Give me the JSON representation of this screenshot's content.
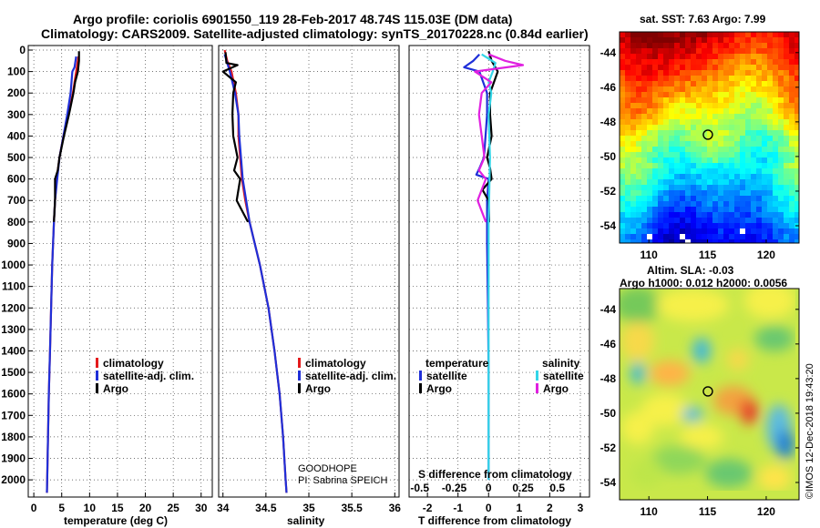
{
  "header": {
    "line1": "Argo profile: coriolis 6901550_119 28-Feb-2017 48.74S 115.03E (DM data)",
    "line2": "Climatology: CARS2009. Satellite-adjusted climatology: synTS_20170228.nc (0.84d earlier)"
  },
  "colors": {
    "climatology": "#e41a1c",
    "satellite": "#1f2fd8",
    "argo": "#000000",
    "satellite_s": "#33d6e8",
    "argo_s": "#e020e0"
  },
  "legend": {
    "climatology": "climatology",
    "satellite_adj": "satellite-adj. clim.",
    "argo": "Argo",
    "temperature_head": "temperature",
    "salinity_head": "salinity",
    "satellite": "satellite"
  },
  "notes": {
    "project": "GOODHOPE",
    "pi": "PI: Sabrina SPEICH"
  },
  "credit": "©IMOS 12-Dec-2018 19:43:20",
  "chart_data": [
    {
      "type": "line",
      "name": "temperature-profile",
      "xlabel": "temperature (deg C)",
      "ylabel": "",
      "xlim": [
        -1,
        32
      ],
      "xticks": [
        0,
        5,
        10,
        15,
        20,
        25,
        30
      ],
      "ylim": [
        2080,
        0
      ],
      "yticks": [
        0,
        100,
        200,
        300,
        400,
        500,
        600,
        700,
        800,
        900,
        1000,
        1100,
        1200,
        1300,
        1400,
        1500,
        1600,
        1700,
        1800,
        1900,
        2000
      ],
      "grid": true,
      "series": [
        {
          "name": "climatology",
          "depth": [
            30,
            100,
            200,
            300,
            400,
            500,
            600,
            700,
            800,
            1000,
            1200,
            1400,
            1600,
            1800,
            2000,
            2060
          ],
          "values": [
            8.0,
            7.6,
            7.0,
            6.2,
            5.3,
            4.6,
            4.1,
            3.8,
            3.6,
            3.3,
            3.1,
            2.9,
            2.7,
            2.55,
            2.4,
            2.35
          ]
        },
        {
          "name": "satellite-adj. clim.",
          "depth": [
            30,
            80,
            100,
            200,
            300,
            400,
            500,
            600,
            700,
            800,
            1000,
            1200,
            1400,
            1600,
            1800,
            2000,
            2060
          ],
          "values": [
            7.6,
            7.3,
            6.9,
            6.6,
            6.0,
            5.3,
            4.6,
            4.2,
            3.8,
            3.6,
            3.3,
            3.1,
            2.9,
            2.7,
            2.55,
            2.4,
            2.35
          ]
        },
        {
          "name": "Argo",
          "depth": [
            5,
            50,
            100,
            150,
            200,
            300,
            400,
            500,
            560,
            600,
            700,
            800
          ],
          "values": [
            8.1,
            8.1,
            7.9,
            7.4,
            7.1,
            6.3,
            5.4,
            4.6,
            4.3,
            3.8,
            3.8,
            3.6
          ]
        }
      ]
    },
    {
      "type": "line",
      "name": "salinity-profile",
      "xlabel": "salinity",
      "ylabel": "",
      "xlim": [
        33.95,
        36.05
      ],
      "xticks": [
        34,
        34.5,
        35,
        35.5,
        36
      ],
      "ylim": [
        2080,
        0
      ],
      "grid": true,
      "series": [
        {
          "name": "climatology",
          "depth": [
            0,
            50,
            100,
            200,
            300,
            400,
            500,
            600,
            700,
            800,
            900,
            1000,
            1200,
            1400,
            1600,
            1800,
            2000,
            2060
          ],
          "values": [
            34.02,
            34.05,
            34.1,
            34.15,
            34.18,
            34.18,
            34.2,
            34.22,
            34.26,
            34.31,
            34.37,
            34.43,
            34.53,
            34.6,
            34.66,
            34.7,
            34.73,
            34.74
          ]
        },
        {
          "name": "satellite-adj. clim.",
          "depth": [
            20,
            60,
            100,
            200,
            300,
            400,
            500,
            600,
            700,
            800,
            900,
            1000,
            1200,
            1400,
            1600,
            1800,
            2000,
            2060
          ],
          "values": [
            34.02,
            34.05,
            34.08,
            34.14,
            34.18,
            34.19,
            34.21,
            34.23,
            34.27,
            34.31,
            34.37,
            34.43,
            34.53,
            34.6,
            34.66,
            34.7,
            34.73,
            34.74
          ]
        },
        {
          "name": "Argo",
          "depth": [
            10,
            60,
            70,
            100,
            150,
            200,
            300,
            400,
            500,
            560,
            600,
            700,
            800
          ],
          "values": [
            34.03,
            34.04,
            34.17,
            34.0,
            34.15,
            34.12,
            34.11,
            34.12,
            34.17,
            34.13,
            34.2,
            34.16,
            34.29
          ]
        }
      ]
    },
    {
      "type": "line",
      "name": "difference-profile",
      "xlabel": "T difference from climatology",
      "xlabel_top": "S difference from climatology",
      "xlim": [
        -2.6,
        3.3
      ],
      "xticks": [
        -2,
        -1,
        0,
        1,
        2,
        3
      ],
      "xticks_top_labels": [
        "-0.5",
        "-0.25",
        "0",
        "0.25",
        "0.5"
      ],
      "xticks_top_values": [
        -0.5,
        -0.25,
        0,
        0.25,
        0.5
      ],
      "ylim": [
        2080,
        0
      ],
      "grid": true,
      "series": [
        {
          "name": "temperature satellite",
          "depth": [
            20,
            50,
            80,
            100,
            200,
            300,
            400,
            500,
            550,
            580,
            600,
            700,
            800,
            900,
            1200,
            1500,
            2000
          ],
          "values": [
            -0.3,
            -0.5,
            -0.8,
            -0.3,
            -0.05,
            -0.05,
            -0.1,
            -0.15,
            -0.3,
            -0.4,
            0.0,
            -0.05,
            -0.05,
            -0.05,
            -0.02,
            0.0,
            0.0
          ]
        },
        {
          "name": "temperature Argo",
          "depth": [
            5,
            50,
            100,
            200,
            300,
            400,
            500,
            550,
            600,
            650,
            700,
            800
          ],
          "values": [
            0.0,
            0.1,
            0.3,
            0.05,
            0.05,
            0.1,
            -0.05,
            0.05,
            0.1,
            -0.2,
            0.0,
            0.02
          ]
        },
        {
          "name": "salinity satellite",
          "depth": [
            20,
            60,
            100,
            150,
            200,
            300,
            500,
            800,
            1100,
            1500,
            2000
          ],
          "values": [
            -0.05,
            0.05,
            0.03,
            0.0,
            0.02,
            0.0,
            0.01,
            0.0,
            0.0,
            0.0,
            0.0
          ]
        },
        {
          "name": "salinity Argo",
          "depth": [
            20,
            50,
            70,
            100,
            150,
            200,
            300,
            400,
            500,
            560,
            600,
            700,
            800
          ],
          "values": [
            0.0,
            0.12,
            0.25,
            -0.1,
            0.02,
            -0.05,
            -0.07,
            -0.05,
            -0.03,
            -0.07,
            -0.02,
            -0.08,
            -0.02
          ]
        }
      ]
    },
    {
      "type": "heatmap",
      "name": "sat-sst-map",
      "title": "sat. SST: 7.63 Argo: 7.99",
      "xlim": [
        107.5,
        122.8
      ],
      "xticks": [
        110,
        115,
        120
      ],
      "ylim": [
        -55,
        -42.8
      ],
      "yticks": [
        -44,
        -46,
        -48,
        -50,
        -52,
        -54
      ],
      "marker": {
        "lon": 115.03,
        "lat": -48.74
      }
    },
    {
      "type": "heatmap",
      "name": "altim-sla-map",
      "title": "Altim. SLA: -0.03",
      "subtitle": "Argo h1000: 0.012 h2000: 0.0056",
      "xlim": [
        107.5,
        122.8
      ],
      "xticks": [
        110,
        115,
        120
      ],
      "ylim": [
        -55,
        -42.8
      ],
      "yticks": [
        -44,
        -46,
        -48,
        -50,
        -52,
        -54
      ],
      "marker": {
        "lon": 115.03,
        "lat": -48.74
      }
    }
  ]
}
